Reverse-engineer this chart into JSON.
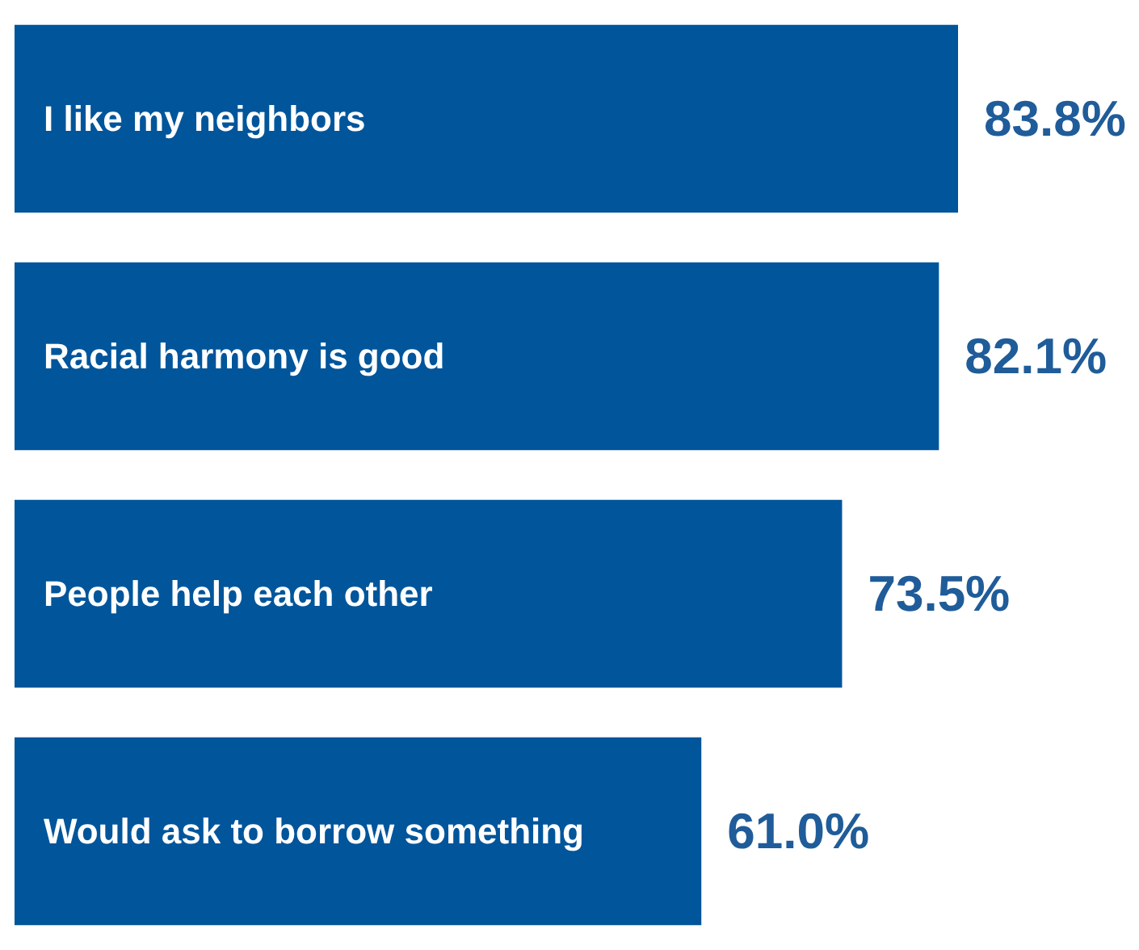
{
  "chart_data": {
    "type": "bar",
    "orientation": "horizontal",
    "categories": [
      "I like my neighbors",
      "Racial harmony is good",
      "People help each other",
      "Would ask to borrow something"
    ],
    "values": [
      83.8,
      82.1,
      73.5,
      61.0
    ],
    "color": "#00559b",
    "value_labels": [
      "83.8%",
      "82.1%",
      "73.5%",
      "61.0%"
    ]
  }
}
